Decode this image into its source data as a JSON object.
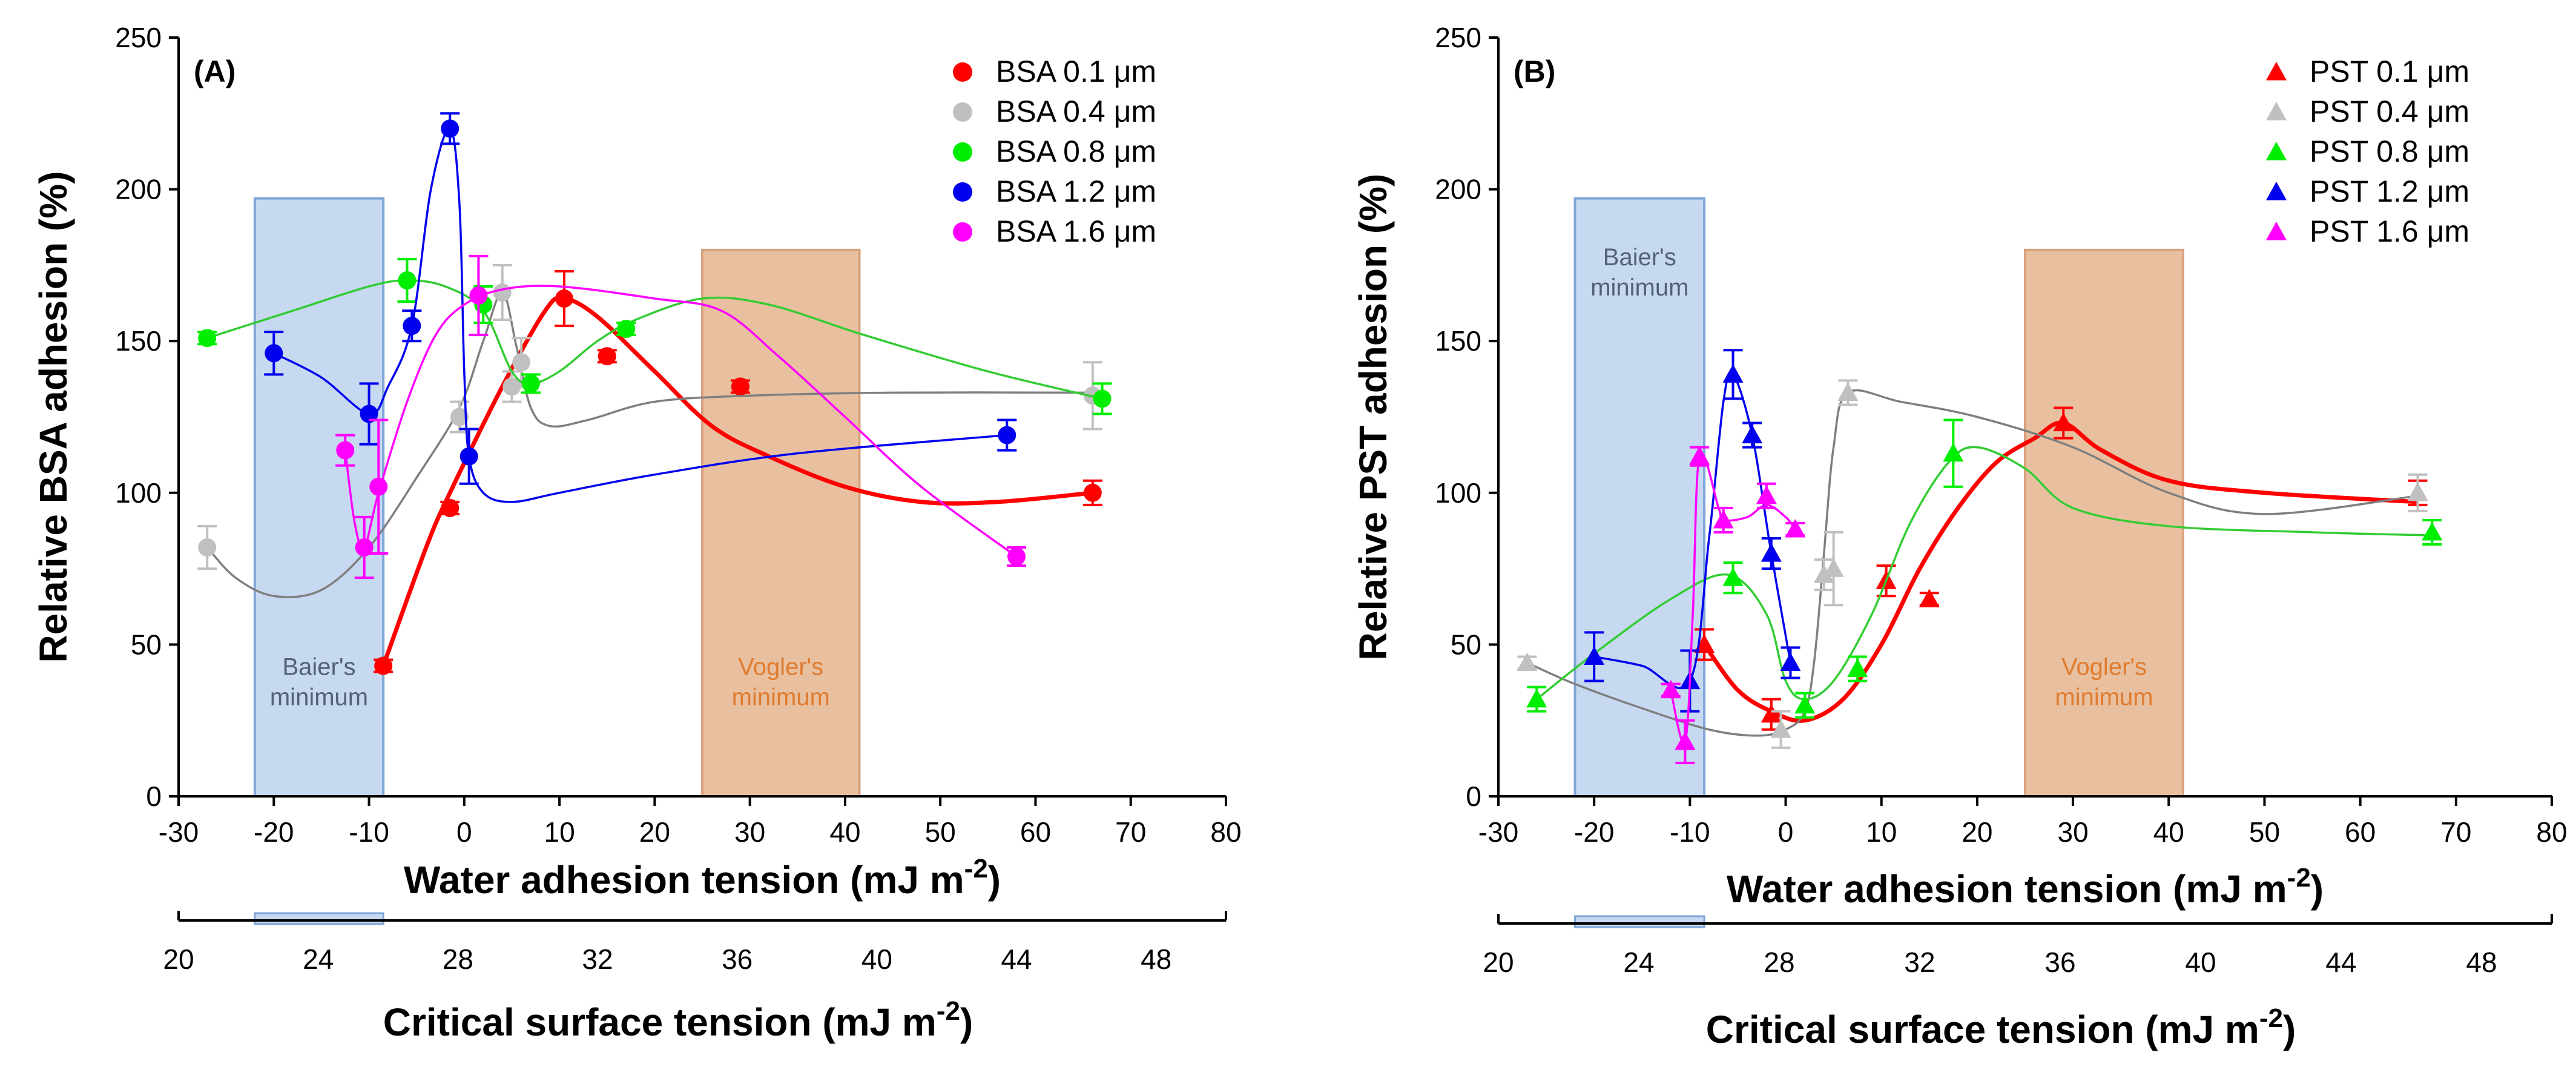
{
  "colors": {
    "bsa_0_1": "#ff0000",
    "bsa_0_4": "#c0c0c0",
    "bsa_0_8": "#00ee00",
    "bsa_1_2": "#0000ee",
    "bsa_1_6": "#ff00ff",
    "baier_fill": "#c6d9f0",
    "baier_stroke": "#7ea6d8",
    "vogler_fill": "#e8c0a0",
    "vogler_stroke": "#d9a27e",
    "baier_text": "#52607a",
    "vogler_text": "#e07b2e",
    "curve_0_4": "#7f7f7f",
    "curve_0_8": "#33cc33"
  },
  "chart_data": [
    {
      "type": "scatter",
      "panel_label": "(A)",
      "marker": "circle",
      "xlabel_main": "Water adhesion tension (mJ m",
      "xlabel_exp": "-2",
      "xlabel_end": ")",
      "ylabel": "Relative BSA adhesion (%)",
      "xlim": [
        -30,
        80
      ],
      "ylim": [
        0,
        250
      ],
      "xticks": [
        "-30",
        "-20",
        "-10",
        "0",
        "10",
        "20",
        "30",
        "40",
        "50",
        "60",
        "70",
        "80"
      ],
      "yticks": [
        "0",
        "50",
        "100",
        "150",
        "200",
        "250"
      ],
      "secondary_axis": {
        "label_main": "Critical surface tension (mJ m",
        "label_exp": "-2",
        "label_end": ")",
        "ticks": [
          "20",
          "24",
          "28",
          "32",
          "36",
          "40",
          "44",
          "48"
        ],
        "range": [
          20,
          50
        ]
      },
      "regions": [
        {
          "label_line1": "Baier's",
          "label_line2": "minimum",
          "x_range": [
            -22,
            -8.5
          ],
          "y_range": [
            0,
            197
          ],
          "kind": "baier"
        },
        {
          "label_line1": "Vogler's",
          "label_line2": "minimum",
          "x_range": [
            25,
            41.5
          ],
          "y_range": [
            0,
            180
          ],
          "kind": "vogler"
        }
      ],
      "series": [
        {
          "name": "BSA 0.1 μm",
          "color_key": "bsa_0_1",
          "curve_color_key": "bsa_0_1",
          "points": [
            [
              -8.5,
              43,
              2
            ],
            [
              -1.5,
              95,
              2
            ],
            [
              10.5,
              164,
              9
            ],
            [
              15,
              145,
              2
            ],
            [
              29,
              135,
              2
            ],
            [
              66,
              100,
              4
            ]
          ],
          "curve": [
            [
              -8.5,
              43
            ],
            [
              -4,
              82
            ],
            [
              -1.5,
              100
            ],
            [
              4,
              135
            ],
            [
              8.5,
              160
            ],
            [
              10.5,
              164
            ],
            [
              14,
              158
            ],
            [
              20,
              140
            ],
            [
              26,
              122
            ],
            [
              32,
              112
            ],
            [
              40,
              102
            ],
            [
              48,
              97
            ],
            [
              56,
              97
            ],
            [
              66,
              100
            ]
          ]
        },
        {
          "name": "BSA 0.4 μm",
          "color_key": "bsa_0_4",
          "curve_color_key": "curve_0_4",
          "points": [
            [
              -27,
              82,
              7
            ],
            [
              -0.5,
              125,
              5
            ],
            [
              4,
              166,
              9
            ],
            [
              5,
              135,
              5
            ],
            [
              6,
              143,
              8
            ],
            [
              66,
              132,
              11
            ]
          ],
          "curve": [
            [
              -27,
              82
            ],
            [
              -24,
              72
            ],
            [
              -20,
              66
            ],
            [
              -15,
              68
            ],
            [
              -10,
              82
            ],
            [
              -5,
              105
            ],
            [
              -0.5,
              128
            ],
            [
              2,
              150
            ],
            [
              4,
              166
            ],
            [
              5.5,
              148
            ],
            [
              7,
              128
            ],
            [
              9,
              122
            ],
            [
              13,
              124
            ],
            [
              20,
              130
            ],
            [
              30,
              132
            ],
            [
              45,
              133
            ],
            [
              66,
              133
            ]
          ]
        },
        {
          "name": "BSA 0.8 μm",
          "color_key": "bsa_0_8",
          "curve_color_key": "curve_0_8",
          "points": [
            [
              -27,
              151,
              2
            ],
            [
              -6,
              170,
              7
            ],
            [
              2,
              162,
              6
            ],
            [
              7,
              136,
              3
            ],
            [
              17,
              154,
              2
            ],
            [
              67,
              131,
              5
            ]
          ],
          "curve": [
            [
              -27,
              151
            ],
            [
              -18,
              160
            ],
            [
              -10,
              168
            ],
            [
              -6,
              170
            ],
            [
              -2,
              168
            ],
            [
              2,
              160
            ],
            [
              5,
              140
            ],
            [
              7,
              136
            ],
            [
              10,
              140
            ],
            [
              14,
              150
            ],
            [
              18,
              157
            ],
            [
              25,
              164
            ],
            [
              32,
              162
            ],
            [
              42,
              152
            ],
            [
              55,
              140
            ],
            [
              67,
              131
            ]
          ]
        },
        {
          "name": "BSA 1.2 μm",
          "color_key": "bsa_1_2",
          "curve_color_key": "bsa_1_2",
          "points": [
            [
              -20,
              146,
              7
            ],
            [
              -10,
              126,
              10
            ],
            [
              -5.5,
              155,
              5
            ],
            [
              -1.5,
              220,
              5
            ],
            [
              0.5,
              112,
              9
            ],
            [
              57,
              119,
              5
            ]
          ],
          "curve": [
            [
              -20,
              146
            ],
            [
              -15,
              138
            ],
            [
              -10,
              126
            ],
            [
              -8,
              135
            ],
            [
              -5.5,
              155
            ],
            [
              -3.5,
              200
            ],
            [
              -1.5,
              220
            ],
            [
              -0.5,
              195
            ],
            [
              0,
              140
            ],
            [
              0.5,
              112
            ],
            [
              2,
              100
            ],
            [
              5,
              97
            ],
            [
              10,
              100
            ],
            [
              20,
              106
            ],
            [
              35,
              113
            ],
            [
              57,
              119
            ]
          ]
        },
        {
          "name": "BSA 1.6 μm",
          "color_key": "bsa_1_6",
          "curve_color_key": "bsa_1_6",
          "points": [
            [
              -12.5,
              114,
              5
            ],
            [
              -10.5,
              82,
              10
            ],
            [
              -9,
              102,
              22
            ],
            [
              1.5,
              165,
              13
            ],
            [
              58,
              79,
              3
            ]
          ],
          "curve": [
            [
              -12.5,
              114
            ],
            [
              -11.5,
              90
            ],
            [
              -10.5,
              82
            ],
            [
              -9,
              100
            ],
            [
              -6,
              130
            ],
            [
              -3,
              152
            ],
            [
              0,
              162
            ],
            [
              4,
              167
            ],
            [
              10,
              168
            ],
            [
              20,
              164
            ],
            [
              27,
              160
            ],
            [
              33,
              145
            ],
            [
              40,
              125
            ],
            [
              48,
              102
            ],
            [
              58,
              79
            ]
          ]
        }
      ]
    },
    {
      "type": "scatter",
      "panel_label": "(B)",
      "marker": "triangle",
      "xlabel_main": "Water adhesion tension (mJ m",
      "xlabel_exp": "-2",
      "xlabel_end": ")",
      "ylabel": "Relative PST adhesion (%)",
      "xlim": [
        -30,
        80
      ],
      "ylim": [
        0,
        250
      ],
      "xticks": [
        "-30",
        "-20",
        "-10",
        "0",
        "10",
        "20",
        "30",
        "40",
        "50",
        "60",
        "70",
        "80"
      ],
      "yticks": [
        "0",
        "50",
        "100",
        "150",
        "200",
        "250"
      ],
      "secondary_axis": {
        "label_main": "Critical surface tension (mJ m",
        "label_exp": "-2",
        "label_end": ")",
        "ticks": [
          "20",
          "24",
          "28",
          "32",
          "36",
          "40",
          "44",
          "48"
        ],
        "range": [
          20,
          50
        ]
      },
      "regions": [
        {
          "label_line1": "Baier's",
          "label_line2": "minimum",
          "x_range": [
            -22,
            -8.5
          ],
          "y_range": [
            0,
            197
          ],
          "kind": "baier"
        },
        {
          "label_line1": "Vogler's",
          "label_line2": "minimum",
          "x_range": [
            25,
            41.5
          ],
          "y_range": [
            0,
            180
          ],
          "kind": "vogler"
        }
      ],
      "series": [
        {
          "name": "PST 0.1 μm",
          "color_key": "bsa_0_1",
          "curve_color_key": "bsa_0_1",
          "points": [
            [
              -8.5,
              50,
              5
            ],
            [
              -1.5,
              27,
              5
            ],
            [
              10.5,
              71,
              5
            ],
            [
              15,
              65,
              2
            ],
            [
              29,
              123,
              5
            ],
            [
              66,
              100,
              4
            ]
          ],
          "curve": [
            [
              -8.5,
              50
            ],
            [
              -5,
              35
            ],
            [
              -1.5,
              28
            ],
            [
              2,
              25
            ],
            [
              6,
              32
            ],
            [
              10,
              50
            ],
            [
              14,
              75
            ],
            [
              18,
              95
            ],
            [
              22,
              110
            ],
            [
              26,
              118
            ],
            [
              29,
              123
            ],
            [
              33,
              114
            ],
            [
              40,
              104
            ],
            [
              50,
              100
            ],
            [
              66,
              97
            ]
          ]
        },
        {
          "name": "PST 0.4 μm",
          "color_key": "bsa_0_4",
          "curve_color_key": "curve_0_4",
          "points": [
            [
              -27,
              44,
              2
            ],
            [
              -0.5,
              22,
              6
            ],
            [
              4,
              73,
              5
            ],
            [
              5,
              75,
              12
            ],
            [
              6.5,
              133,
              4
            ],
            [
              66,
              100,
              6
            ]
          ],
          "curve": [
            [
              -27,
              44
            ],
            [
              -22,
              37
            ],
            [
              -15,
              29
            ],
            [
              -8,
              22
            ],
            [
              -3,
              20
            ],
            [
              0,
              22
            ],
            [
              2,
              28
            ],
            [
              3,
              45
            ],
            [
              4,
              80
            ],
            [
              5,
              115
            ],
            [
              6.5,
              133
            ],
            [
              12,
              130
            ],
            [
              20,
              125
            ],
            [
              30,
              115
            ],
            [
              40,
              100
            ],
            [
              50,
              93
            ],
            [
              66,
              99
            ]
          ]
        },
        {
          "name": "PST 0.8 μm",
          "color_key": "bsa_0_8",
          "curve_color_key": "curve_0_8",
          "points": [
            [
              -26,
              32,
              4
            ],
            [
              -5.5,
              72,
              5
            ],
            [
              2,
              30,
              4
            ],
            [
              7.5,
              42,
              4
            ],
            [
              17.5,
              113,
              11
            ],
            [
              67.5,
              87,
              4
            ]
          ],
          "curve": [
            [
              -26,
              32
            ],
            [
              -20,
              47
            ],
            [
              -12,
              65
            ],
            [
              -6,
              73
            ],
            [
              -2,
              60
            ],
            [
              0,
              38
            ],
            [
              2,
              32
            ],
            [
              5,
              38
            ],
            [
              9,
              60
            ],
            [
              13,
              90
            ],
            [
              17,
              110
            ],
            [
              20,
              115
            ],
            [
              25,
              108
            ],
            [
              30,
              95
            ],
            [
              40,
              89
            ],
            [
              55,
              87
            ],
            [
              67,
              86
            ]
          ]
        },
        {
          "name": "PST 1.2 μm",
          "color_key": "bsa_1_2",
          "curve_color_key": "bsa_1_2",
          "points": [
            [
              -20,
              46,
              8
            ],
            [
              -10,
              38,
              10
            ],
            [
              -5.5,
              139,
              8
            ],
            [
              -3.5,
              119,
              4
            ],
            [
              -1.5,
              80,
              5
            ],
            [
              0.5,
              44,
              5
            ]
          ],
          "curve": [
            [
              -20,
              46
            ],
            [
              -15,
              43
            ],
            [
              -10,
              38
            ],
            [
              -8,
              85
            ],
            [
              -6.5,
              130
            ],
            [
              -5.5,
              139
            ],
            [
              -3.5,
              119
            ],
            [
              -1.5,
              80
            ],
            [
              0.5,
              44
            ]
          ]
        },
        {
          "name": "PST 1.6 μm",
          "color_key": "bsa_1_6",
          "curve_color_key": "bsa_1_6",
          "points": [
            [
              -12,
              35,
              2
            ],
            [
              -10.5,
              18,
              7
            ],
            [
              -9,
              112,
              3
            ],
            [
              -6.5,
              91,
              4
            ],
            [
              -2,
              99,
              4
            ],
            [
              1,
              88,
              2
            ]
          ],
          "curve": [
            [
              -12,
              35
            ],
            [
              -10.5,
              18
            ],
            [
              -9.7,
              60
            ],
            [
              -9,
              112
            ],
            [
              -7,
              95
            ],
            [
              -6.5,
              91
            ],
            [
              -4,
              92
            ],
            [
              -2,
              96
            ],
            [
              0,
              92
            ],
            [
              1,
              88
            ]
          ]
        }
      ]
    }
  ]
}
